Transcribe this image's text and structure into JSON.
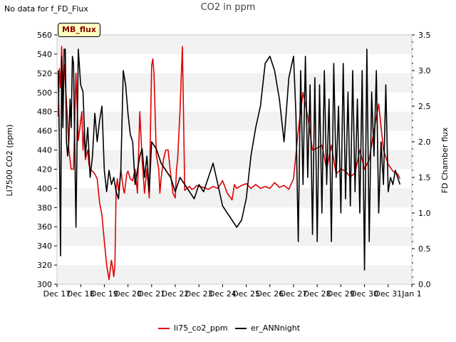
{
  "header": {
    "nodata_text": "No data for f_FD_Flux",
    "badge_text": "MB_flux"
  },
  "chart_data": {
    "type": "line",
    "title": "CO2 in ppm",
    "xlabel": "",
    "ylabel": "LI7500 CO2 (ppm)",
    "y2label": "FD Chamber flux",
    "xlim": [
      0,
      15
    ],
    "ylim": [
      300,
      560
    ],
    "y2lim": [
      0.0,
      3.5
    ],
    "grid": "horizontal bands",
    "legend_position": "bottom-center",
    "x_ticks": [
      0,
      1,
      2,
      3,
      4,
      5,
      6,
      7,
      8,
      9,
      10,
      11,
      12,
      13,
      14,
      15
    ],
    "x_tick_labels": [
      "Dec 17",
      "Dec 18",
      "Dec 19",
      "Dec 20",
      "Dec 21",
      "Dec 22",
      "Dec 23",
      "Dec 24",
      "Dec 25",
      "Dec 26",
      "Dec 27",
      "Dec 28",
      "Dec 29",
      "Dec 30",
      "Dec 31",
      "Jan 1"
    ],
    "y_ticks": [
      300,
      320,
      340,
      360,
      380,
      400,
      420,
      440,
      460,
      480,
      500,
      520,
      540,
      560
    ],
    "y_tick_labels": [
      "300",
      "320",
      "340",
      "360",
      "380",
      "400",
      "420",
      "440",
      "460",
      "480",
      "500",
      "520",
      "540",
      "560"
    ],
    "y2_ticks": [
      0.0,
      0.5,
      1.0,
      1.5,
      2.0,
      2.5,
      3.0,
      3.5
    ],
    "y2_tick_labels": [
      "0.0",
      "0.5",
      "1.0",
      "1.5",
      "2.0",
      "2.5",
      "3.0",
      "3.5"
    ],
    "series": [
      {
        "name": "li75_co2_ppm",
        "axis": "left",
        "color": "#e00000",
        "x": [
          0.05,
          0.1,
          0.15,
          0.2,
          0.25,
          0.3,
          0.35,
          0.4,
          0.45,
          0.5,
          0.55,
          0.6,
          0.7,
          0.8,
          0.9,
          1.0,
          1.05,
          1.1,
          1.15,
          1.2,
          1.3,
          1.35,
          1.4,
          1.5,
          1.6,
          1.7,
          1.8,
          1.9,
          2.0,
          2.1,
          2.2,
          2.25,
          2.3,
          2.35,
          2.4,
          2.45,
          2.5,
          2.55,
          2.6,
          2.65,
          2.7,
          2.75,
          2.8,
          2.85,
          2.9,
          2.95,
          3.0,
          3.1,
          3.2,
          3.3,
          3.4,
          3.5,
          3.6,
          3.7,
          3.8,
          3.9,
          4.0,
          4.05,
          4.1,
          4.2,
          4.3,
          4.35,
          4.4,
          4.5,
          4.6,
          4.7,
          4.8,
          4.9,
          5.0,
          5.05,
          5.1,
          5.2,
          5.3,
          5.4,
          5.5,
          5.6,
          5.7,
          5.8,
          5.9,
          6.0,
          6.2,
          6.4,
          6.6,
          6.8,
          7.0,
          7.2,
          7.4,
          7.5,
          7.6,
          7.8,
          8.0,
          8.2,
          8.4,
          8.6,
          8.8,
          9.0,
          9.2,
          9.4,
          9.6,
          9.8,
          10.0,
          10.2,
          10.4,
          10.6,
          10.8,
          11.0,
          11.2,
          11.4,
          11.6,
          11.8,
          12.0,
          12.2,
          12.4,
          12.6,
          12.8,
          13.0,
          13.2,
          13.4,
          13.6,
          13.8,
          14.0,
          14.2,
          14.4,
          14.5
        ],
        "values": [
          475,
          525,
          505,
          548,
          500,
          530,
          510,
          490,
          470,
          440,
          430,
          420,
          420,
          520,
          450,
          470,
          480,
          440,
          460,
          430,
          440,
          425,
          420,
          418,
          415,
          410,
          385,
          372,
          345,
          320,
          305,
          315,
          325,
          318,
          308,
          320,
          400,
          410,
          398,
          405,
          420,
          410,
          400,
          395,
          405,
          415,
          418,
          410,
          408,
          420,
          395,
          480,
          430,
          395,
          420,
          390,
          528,
          535,
          520,
          435,
          420,
          395,
          410,
          430,
          440,
          440,
          415,
          395,
          390,
          420,
          430,
          480,
          548,
          398,
          400,
          402,
          399,
          400,
          403,
          402,
          401,
          399,
          402,
          400,
          408,
          395,
          388,
          404,
          400,
          403,
          405,
          400,
          404,
          400,
          402,
          400,
          406,
          401,
          403,
          399,
          410,
          460,
          500,
          475,
          440,
          442,
          445,
          420,
          445,
          415,
          420,
          418,
          412,
          416,
          440,
          420,
          430,
          460,
          488,
          440,
          425,
          418,
          415,
          410
        ]
      },
      {
        "name": "er_ANNnight",
        "axis": "right",
        "color": "#000000",
        "x": [
          0.05,
          0.1,
          0.15,
          0.2,
          0.25,
          0.3,
          0.35,
          0.4,
          0.45,
          0.5,
          0.55,
          0.6,
          0.65,
          0.7,
          0.8,
          0.9,
          1.0,
          1.1,
          1.2,
          1.3,
          1.4,
          1.5,
          1.6,
          1.7,
          1.8,
          1.9,
          2.0,
          2.1,
          2.2,
          2.3,
          2.4,
          2.5,
          2.6,
          2.7,
          2.8,
          2.9,
          3.0,
          3.1,
          3.2,
          3.3,
          3.4,
          3.5,
          3.6,
          3.7,
          3.8,
          3.9,
          4.0,
          4.2,
          4.4,
          4.6,
          4.8,
          5.0,
          5.2,
          5.4,
          5.6,
          5.8,
          6.0,
          6.2,
          6.4,
          6.6,
          6.8,
          7.0,
          7.2,
          7.4,
          7.6,
          7.8,
          8.0,
          8.2,
          8.4,
          8.6,
          8.8,
          9.0,
          9.2,
          9.4,
          9.6,
          9.8,
          10.0,
          10.1,
          10.2,
          10.3,
          10.4,
          10.5,
          10.6,
          10.7,
          10.8,
          10.9,
          11.0,
          11.1,
          11.2,
          11.3,
          11.4,
          11.5,
          11.6,
          11.7,
          11.8,
          11.9,
          12.0,
          12.1,
          12.2,
          12.3,
          12.4,
          12.5,
          12.6,
          12.7,
          12.8,
          12.9,
          13.0,
          13.1,
          13.2,
          13.3,
          13.4,
          13.5,
          13.6,
          13.7,
          13.8,
          13.9,
          14.0,
          14.1,
          14.2,
          14.3,
          14.4,
          14.5
        ],
        "values": [
          3.0,
          2.0,
          0.4,
          3.2,
          2.2,
          3.3,
          3.3,
          2.0,
          1.8,
          2.0,
          2.6,
          2.2,
          3.2,
          3.1,
          0.8,
          3.3,
          2.8,
          2.7,
          1.8,
          2.2,
          1.5,
          1.8,
          2.4,
          2.0,
          2.3,
          2.5,
          1.6,
          1.3,
          1.6,
          1.4,
          1.5,
          1.3,
          1.2,
          1.6,
          3.0,
          2.8,
          2.4,
          2.1,
          2.0,
          1.4,
          1.6,
          1.8,
          1.9,
          1.5,
          1.8,
          1.3,
          2.0,
          1.9,
          1.7,
          1.6,
          1.5,
          1.3,
          1.5,
          1.4,
          1.3,
          1.2,
          1.4,
          1.3,
          1.5,
          1.7,
          1.4,
          1.1,
          1.0,
          0.9,
          0.8,
          0.9,
          1.2,
          1.8,
          2.2,
          2.5,
          3.1,
          3.2,
          3.0,
          2.6,
          2.0,
          2.9,
          3.2,
          2.4,
          0.6,
          3.0,
          1.4,
          3.2,
          1.5,
          2.8,
          0.7,
          2.9,
          0.6,
          2.8,
          1.0,
          3.0,
          1.4,
          2.6,
          0.6,
          3.1,
          1.5,
          2.5,
          1.0,
          3.1,
          1.2,
          2.7,
          1.1,
          3.0,
          1.3,
          2.6,
          1.0,
          3.0,
          0.2,
          3.3,
          0.6,
          2.7,
          1.8,
          3.0,
          1.0,
          2.0,
          1.4,
          2.8,
          1.3,
          1.5,
          1.4,
          1.6,
          1.5,
          1.4
        ]
      }
    ]
  }
}
